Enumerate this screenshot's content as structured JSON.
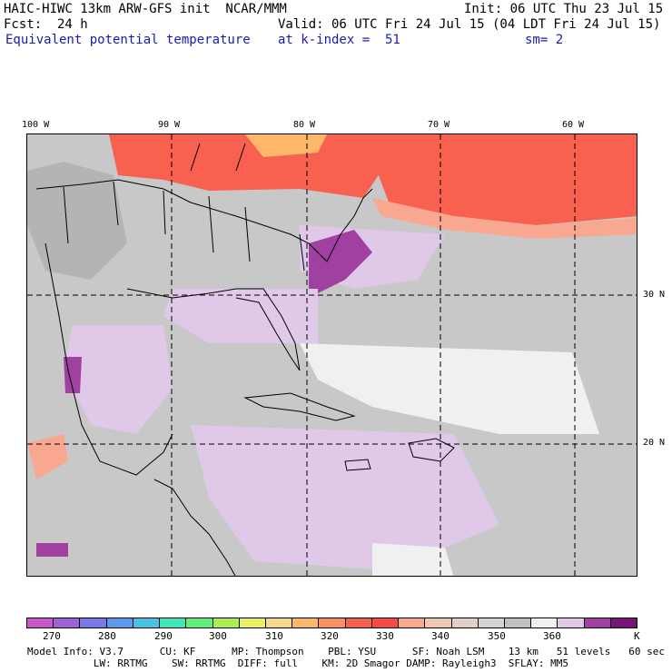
{
  "header": {
    "line1_left": "HAIC-HIWC 13km ARW-GFS init  NCAR/MMM",
    "line1_right": "Init: 06 UTC Thu 23 Jul 15",
    "line2_left": "Fcst:  24 h",
    "line2_right": "Valid: 06 UTC Fri 24 Jul 15 (04 LDT Fri 24 Jul 15)",
    "field_name": "Equivalent potential temperature",
    "level": "at k-index =  51",
    "smoothing": "sm= 2"
  },
  "axes": {
    "lon_labels": [
      "100 W",
      "90 W",
      "80 W",
      "70 W",
      "60 W"
    ],
    "lat_labels": [
      "30 N",
      "20 N"
    ]
  },
  "colorbar": {
    "colors": [
      "#cc55cc",
      "#a060d8",
      "#7a78e8",
      "#5a9af0",
      "#46c4e4",
      "#3ee8b8",
      "#5ef078",
      "#a8f050",
      "#e8f060",
      "#f8d888",
      "#fcb868",
      "#f89060",
      "#f86050",
      "#f84848",
      "#f8a890",
      "#f0c8b0",
      "#e0d0c8",
      "#d4d4d4",
      "#c0c0c0",
      "#f0f0f0",
      "#e0c8e8",
      "#a040a0",
      "#781478"
    ],
    "labels": [
      "270",
      "280",
      "290",
      "300",
      "310",
      "320",
      "330",
      "340",
      "350",
      "360",
      "K"
    ]
  },
  "model_info": {
    "line1": "Model Info: V3.7      CU: KF      MP: Thompson    PBL: YSU      SF: Noah LSM    13 km   51 levels   60 sec",
    "line2": "           LW: RRTMG    SW: RRTMG  DIFF: full    KM: 2D Smagor DAMP: Rayleigh3  SFLAY: MM5"
  }
}
